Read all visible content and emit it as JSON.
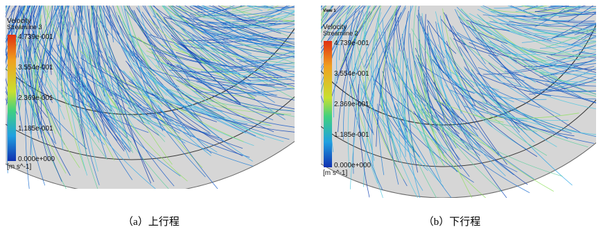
{
  "panels": [
    {
      "legend_title": "Velocity",
      "legend_subtitle": "Streamline 3",
      "colorbar_labels": [
        "4.739e-001",
        "3.554e-001",
        "2.369e-001",
        "1.185e-001",
        "0.000e+000"
      ],
      "unit": "[m s^-1]",
      "caption": "（a）上行程"
    },
    {
      "view_label": "View 1",
      "legend_title": "Velocity",
      "legend_subtitle": "Streamline 2",
      "colorbar_labels": [
        "4.739e-001",
        "3.554e-001",
        "2.369e-001",
        "1.185e-001",
        "0.000e+000"
      ],
      "unit": "[m s^-1]",
      "caption": "（b）下行程"
    }
  ]
}
